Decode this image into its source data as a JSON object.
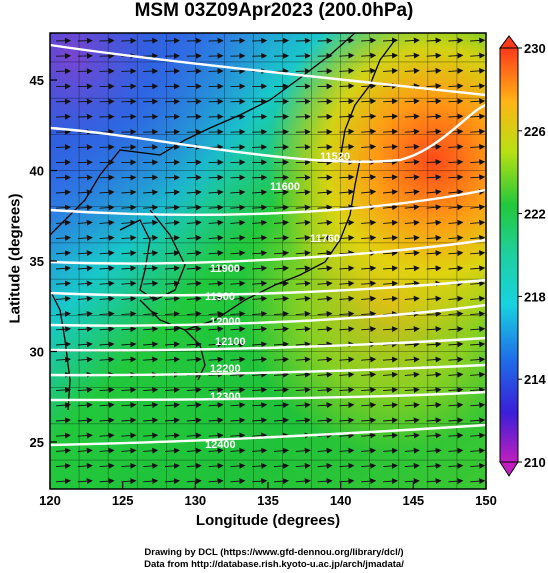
{
  "chart_data": {
    "type": "heatmap",
    "title": "MSM 03Z09Apr2023 (200.0hPa)",
    "xlabel": "Longitude (degrees)",
    "ylabel": "Latitude  (degrees)",
    "xlim": [
      120,
      150
    ],
    "ylim": [
      22.4,
      47.6
    ],
    "x_ticks": [
      "120",
      "125",
      "130",
      "135",
      "140",
      "145",
      "150"
    ],
    "y_ticks": [
      "25",
      "30",
      "35",
      "40",
      "45"
    ],
    "colorbar": {
      "range": [
        210,
        230
      ],
      "ticks": [
        "210",
        "214",
        "218",
        "222",
        "226",
        "230"
      ],
      "extend": "both"
    },
    "contour_labels": [
      "11520",
      "11600",
      "11760",
      "11900",
      "11900",
      "12000",
      "12100",
      "12200",
      "12300",
      "12400"
    ],
    "vector_field": "eastward wind arrows",
    "grid": true
  },
  "credits": {
    "line1": "Drawing by DCL (https://www.gfd-dennou.org/library/dcl/)",
    "line2": "Data from http://database.rish.kyoto-u.ac.jp/arch/jmadata/"
  }
}
